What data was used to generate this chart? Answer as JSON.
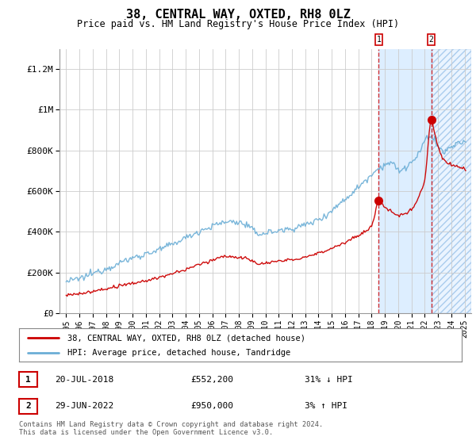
{
  "title": "38, CENTRAL WAY, OXTED, RH8 0LZ",
  "subtitle": "Price paid vs. HM Land Registry's House Price Index (HPI)",
  "hpi_color": "#6baed6",
  "price_color": "#cc0000",
  "marker_color": "#cc0000",
  "bg_color": "#ffffff",
  "plot_bg_color": "#ffffff",
  "grid_color": "#cccccc",
  "highlight_bg": "#ddeeff",
  "ylim": [
    0,
    1300000
  ],
  "yticks": [
    0,
    200000,
    400000,
    600000,
    800000,
    1000000,
    1200000
  ],
  "ytick_labels": [
    "£0",
    "£200K",
    "£400K",
    "£600K",
    "£800K",
    "£1M",
    "£1.2M"
  ],
  "xmin": 1994.5,
  "xmax": 2025.5,
  "transactions": [
    {
      "id": 1,
      "year": 2018.54,
      "price": 552200,
      "label": "20-JUL-2018",
      "amount": "£552,200",
      "hpi_diff": "31% ↓ HPI"
    },
    {
      "id": 2,
      "year": 2022.49,
      "price": 950000,
      "label": "29-JUN-2022",
      "amount": "£950,000",
      "hpi_diff": "3% ↑ HPI"
    }
  ],
  "legend_entries": [
    "38, CENTRAL WAY, OXTED, RH8 0LZ (detached house)",
    "HPI: Average price, detached house, Tandridge"
  ],
  "copyright": "Contains HM Land Registry data © Crown copyright and database right 2024.\nThis data is licensed under the Open Government Licence v3.0.",
  "xticks": [
    1995,
    1996,
    1997,
    1998,
    1999,
    2000,
    2001,
    2002,
    2003,
    2004,
    2005,
    2006,
    2007,
    2008,
    2009,
    2010,
    2011,
    2012,
    2013,
    2014,
    2015,
    2016,
    2017,
    2018,
    2019,
    2020,
    2021,
    2022,
    2023,
    2024,
    2025
  ]
}
